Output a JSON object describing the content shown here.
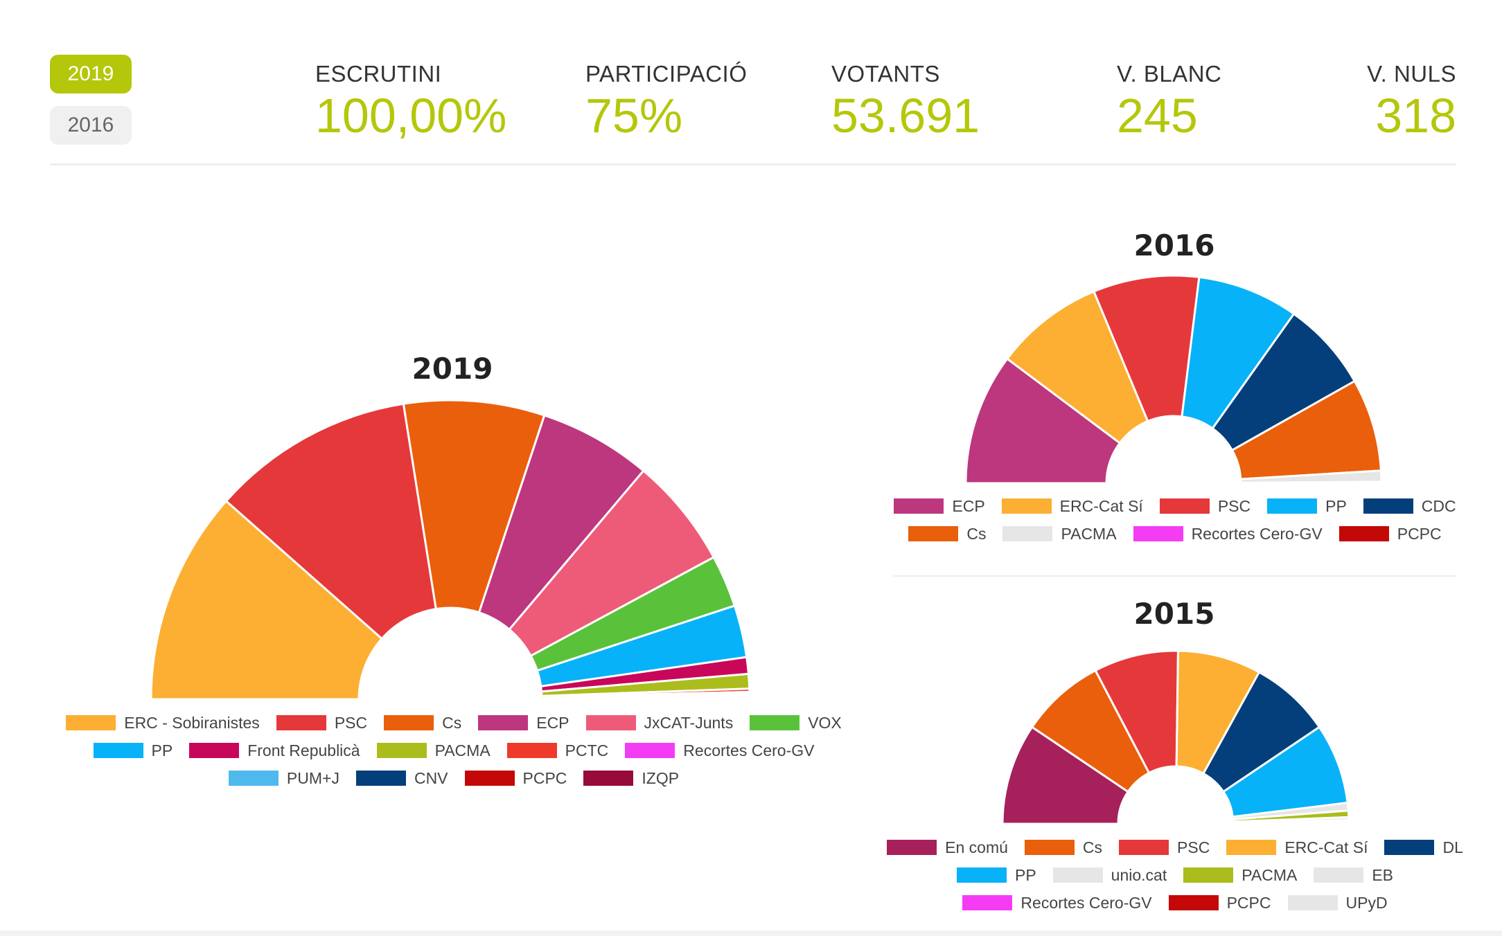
{
  "year_buttons": [
    {
      "label": "2019",
      "active": true
    },
    {
      "label": "2016",
      "active": false
    }
  ],
  "stats": [
    {
      "label": "ESCRUTINI",
      "value": "100,00%"
    },
    {
      "label": "PARTICIPACIÓ",
      "value": "75%"
    },
    {
      "label": "VOTANTS",
      "value": "53.691"
    },
    {
      "label": "V. BLANC",
      "value": "245"
    },
    {
      "label": "V. NULS",
      "value": "318"
    }
  ],
  "chart_data": [
    {
      "type": "pie",
      "variant": "semi-donut",
      "title": "2019",
      "legend": [
        "ERC - Sobiranistes",
        "PSC",
        "Cs",
        "ECP",
        "JxCAT-Junts",
        "VOX",
        "PP",
        "Front Republicà",
        "PACMA",
        "PCTC",
        "Recortes Cero-GV",
        "PUM+J",
        "CNV",
        "PCPC",
        "IZQP"
      ],
      "legend_rows": [
        6,
        5,
        4
      ],
      "slices": [
        {
          "name": "ERC - Sobiranistes",
          "value": 20.5,
          "color": "#fcaf32"
        },
        {
          "name": "PSC",
          "value": 19.5,
          "color": "#e5383b"
        },
        {
          "name": "Cs",
          "value": 13.5,
          "color": "#ea5f0b"
        },
        {
          "name": "ECP",
          "value": 10.8,
          "color": "#bd377e"
        },
        {
          "name": "JxCAT-Junts",
          "value": 10.6,
          "color": "#ee5b78"
        },
        {
          "name": "VOX",
          "value": 5.0,
          "color": "#5ac23a"
        },
        {
          "name": "PP",
          "value": 5.0,
          "color": "#08b2f8"
        },
        {
          "name": "Front Republicà",
          "value": 1.6,
          "color": "#c8075a"
        },
        {
          "name": "PACMA",
          "value": 1.4,
          "color": "#aabd1c"
        },
        {
          "name": "PCTC",
          "value": 0.3,
          "color": "#ee3a2a"
        },
        {
          "name": "Recortes Cero-GV",
          "value": 0.2,
          "color": "#f53cf5"
        },
        {
          "name": "PUM+J",
          "value": 0.2,
          "color": "#4fb9ee"
        },
        {
          "name": "CNV",
          "value": 0.1,
          "color": "#043f7b"
        },
        {
          "name": "PCPC",
          "value": 0.1,
          "color": "#c40808"
        },
        {
          "name": "IZQP",
          "value": 0.1,
          "color": "#970b3a"
        }
      ]
    },
    {
      "type": "pie",
      "variant": "semi-donut",
      "title": "2016",
      "legend": [
        "ECP",
        "ERC-Cat Sí",
        "PSC",
        "PP",
        "CDC",
        "Cs",
        "PACMA",
        "Recortes Cero-GV",
        "PCPC"
      ],
      "legend_rows": [
        5,
        4
      ],
      "slices": [
        {
          "name": "ECP",
          "value": 19.0,
          "color": "#bd377e"
        },
        {
          "name": "ERC-Cat Sí",
          "value": 15.8,
          "color": "#fcaf32"
        },
        {
          "name": "PSC",
          "value": 15.3,
          "color": "#e5383b"
        },
        {
          "name": "PP",
          "value": 14.6,
          "color": "#08b2f8"
        },
        {
          "name": "CDC",
          "value": 13.0,
          "color": "#043f7b"
        },
        {
          "name": "Cs",
          "value": 13.4,
          "color": "#ea5f0b"
        },
        {
          "name": "PACMA",
          "value": 1.6,
          "color": "#e6e6e6"
        },
        {
          "name": "Recortes Cero-GV",
          "value": 0.1,
          "color": "#f53cf5"
        },
        {
          "name": "PCPC",
          "value": 0.1,
          "color": "#c40808"
        }
      ]
    },
    {
      "type": "pie",
      "variant": "semi-donut",
      "title": "2015",
      "legend": [
        "En comú",
        "Cs",
        "PSC",
        "ERC-Cat Sí",
        "DL",
        "PP",
        "unio.cat",
        "PACMA",
        "EB",
        "Recortes Cero-GV",
        "PCPC",
        "UPyD"
      ],
      "legend_rows": [
        5,
        4,
        3
      ],
      "slices": [
        {
          "name": "En comú",
          "value": 17.0,
          "color": "#a6215c"
        },
        {
          "name": "Cs",
          "value": 14.2,
          "color": "#ea5f0b"
        },
        {
          "name": "PSC",
          "value": 14.2,
          "color": "#e5383b"
        },
        {
          "name": "ERC-Cat Sí",
          "value": 14.0,
          "color": "#fcaf32"
        },
        {
          "name": "DL",
          "value": 13.6,
          "color": "#043f7b"
        },
        {
          "name": "PP",
          "value": 13.5,
          "color": "#08b2f8"
        },
        {
          "name": "unio.cat",
          "value": 1.3,
          "color": "#e6e6e6"
        },
        {
          "name": "PACMA",
          "value": 1.1,
          "color": "#aabd1c"
        },
        {
          "name": "EB",
          "value": 0.5,
          "color": "#e6e6e6"
        },
        {
          "name": "Recortes Cero-GV",
          "value": 0.2,
          "color": "#f53cf5"
        },
        {
          "name": "PCPC",
          "value": 0.2,
          "color": "#c40808"
        },
        {
          "name": "UPyD",
          "value": 0.2,
          "color": "#e6e6e6"
        }
      ]
    }
  ]
}
